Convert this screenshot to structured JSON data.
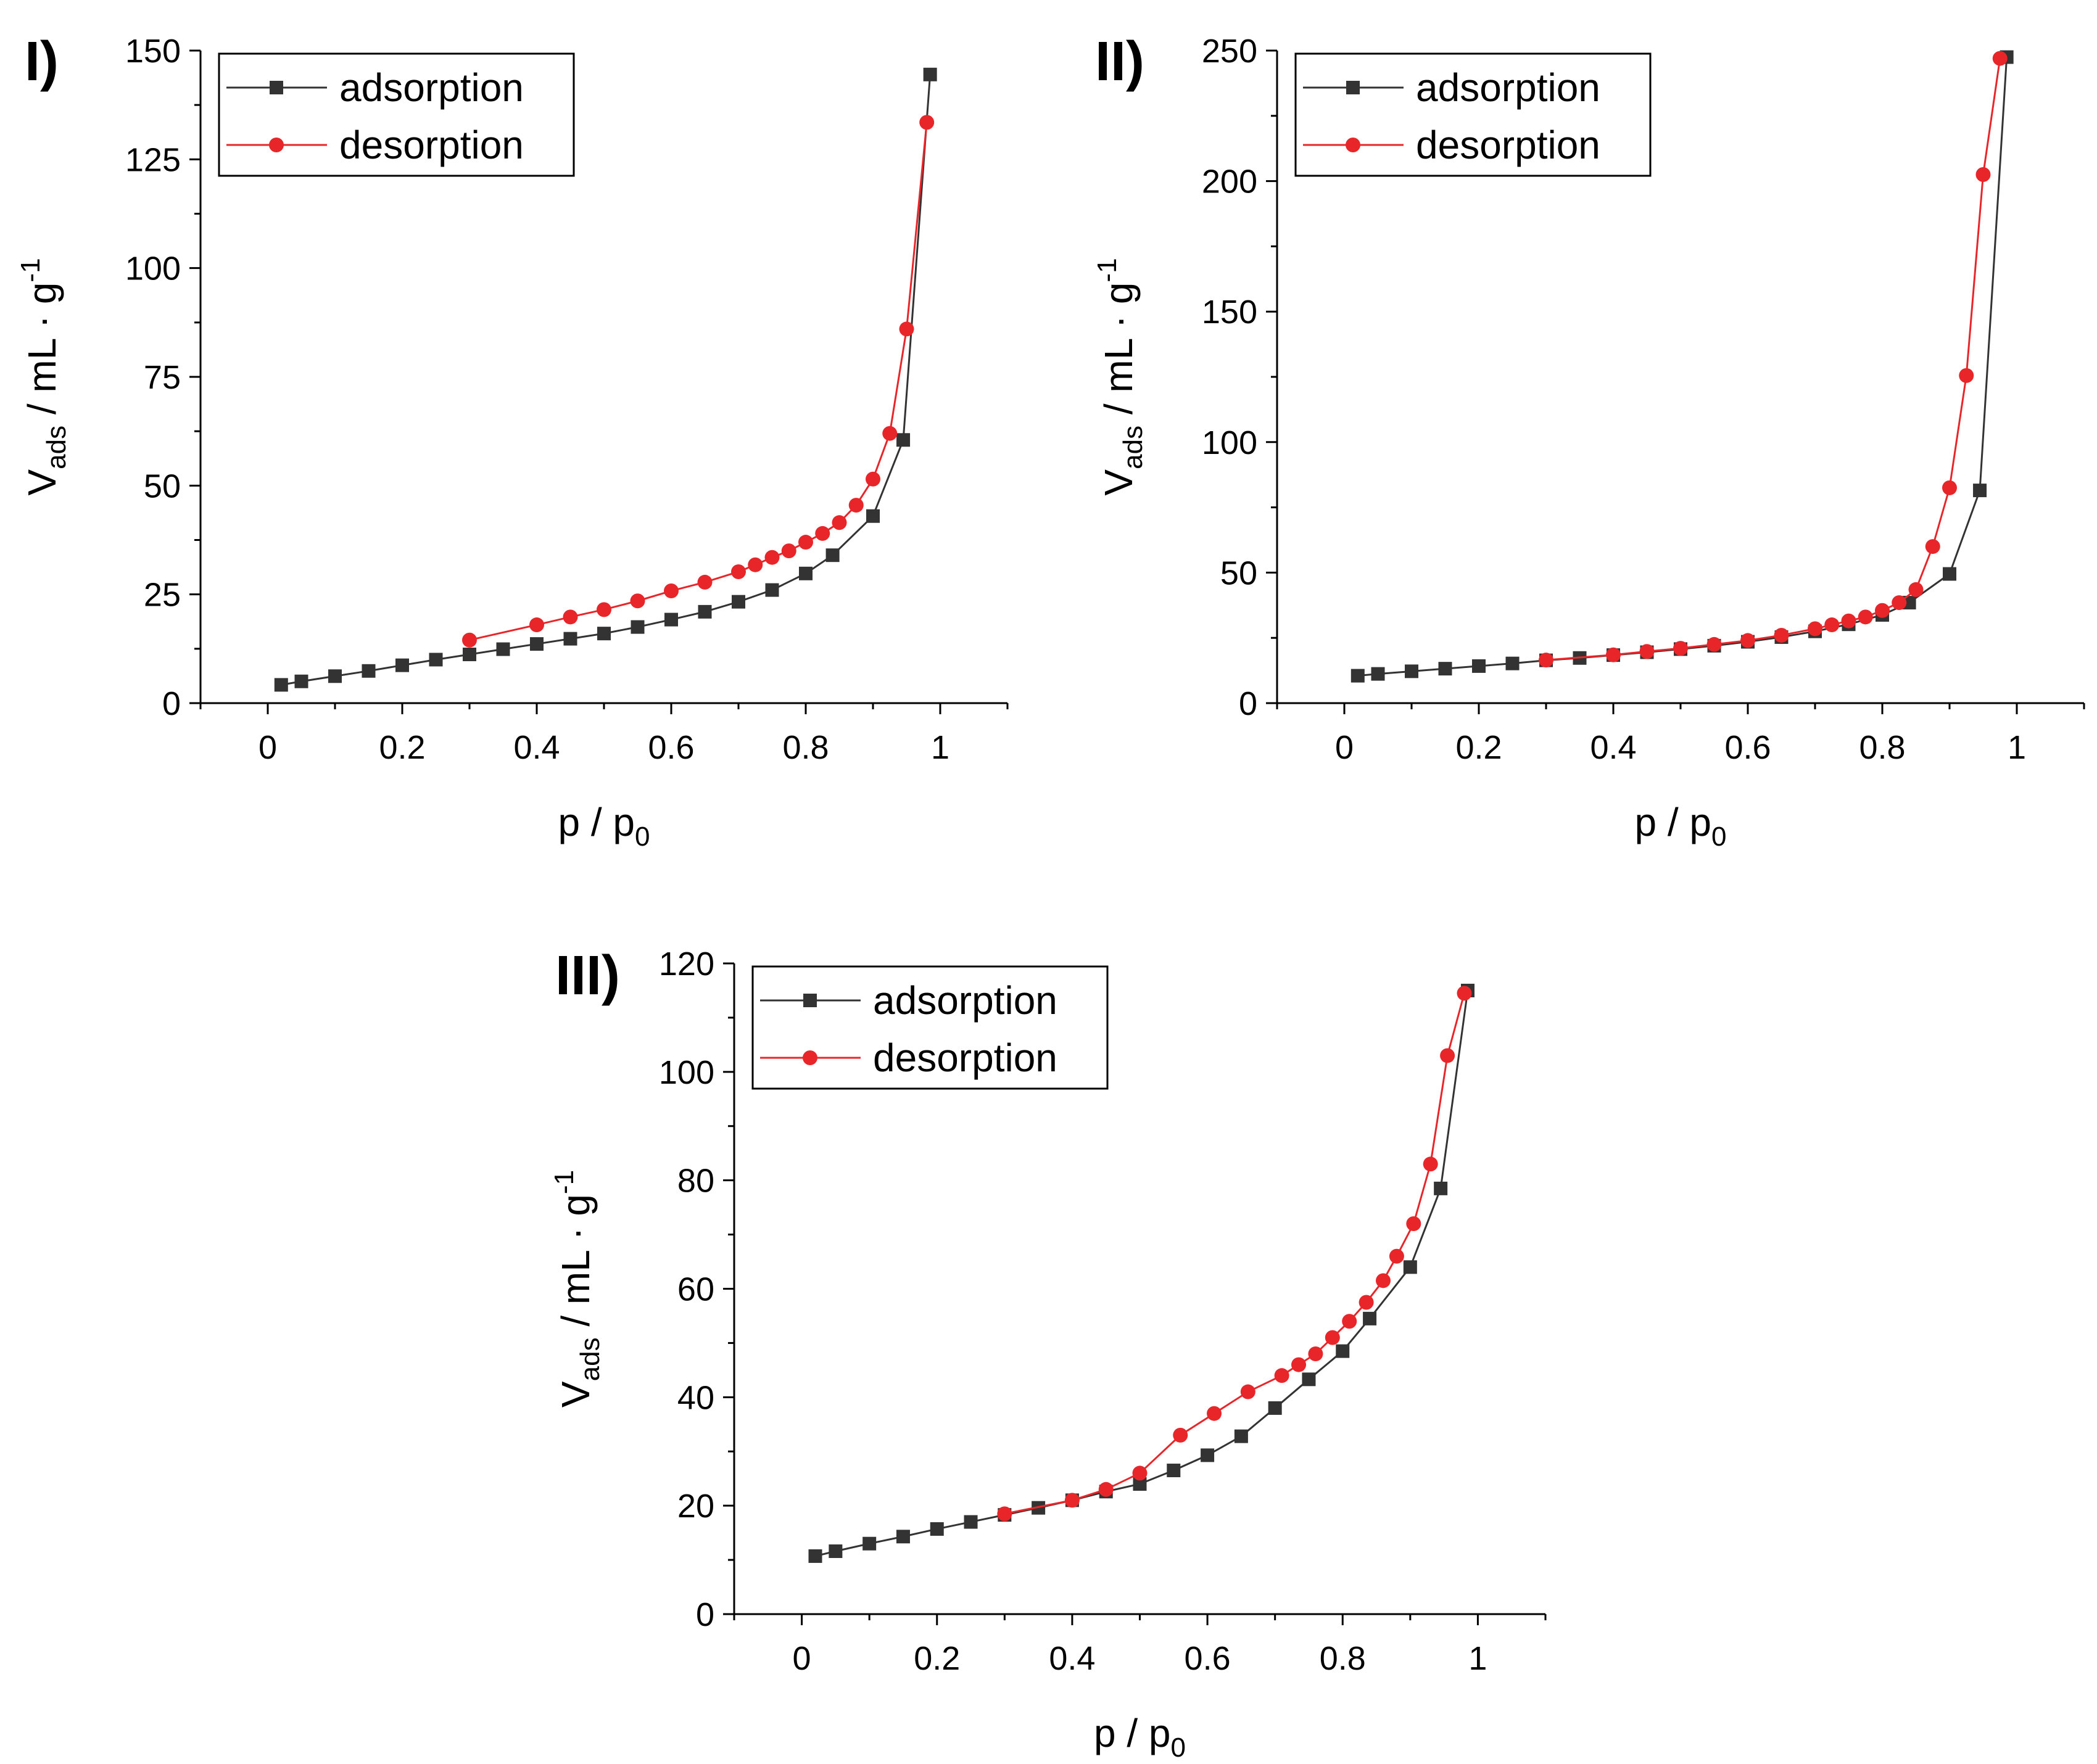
{
  "colors": {
    "adsorption": "#333333",
    "desorption": "#e8262a",
    "axis": "#000000",
    "background": "#ffffff"
  },
  "chart_data": [
    {
      "type": "line",
      "panel_label": "I)",
      "xlabel": "p / p",
      "xlabel_sub": "0",
      "ylabel": "V",
      "ylabel_sub": "ads",
      "ylabel_unit": " / mL · g",
      "ylabel_sup": "-1",
      "xlim": [
        -0.1,
        1.1
      ],
      "ylim": [
        0,
        150
      ],
      "xticks": [
        0,
        0.2,
        0.4,
        0.6,
        0.8,
        1
      ],
      "xtick_labels": [
        "0",
        "0.2",
        "0.4",
        "0.6",
        "0.8",
        "1"
      ],
      "yticks": [
        0,
        25,
        50,
        75,
        100,
        125,
        150
      ],
      "ytick_labels": [
        "0",
        "25",
        "50",
        "75",
        "100",
        "125",
        "150"
      ],
      "legend": [
        "adsorption",
        "desorption"
      ],
      "legend_position": "top-left",
      "series": [
        {
          "name": "adsorption",
          "marker": "square",
          "x": [
            0.02,
            0.05,
            0.1,
            0.15,
            0.2,
            0.25,
            0.3,
            0.35,
            0.4,
            0.45,
            0.5,
            0.55,
            0.6,
            0.65,
            0.7,
            0.75,
            0.8,
            0.84,
            0.9,
            0.945,
            0.985
          ],
          "y": [
            4.2,
            5.0,
            6.2,
            7.4,
            8.7,
            10.0,
            11.2,
            12.4,
            13.6,
            14.8,
            16.0,
            17.5,
            19.2,
            21.0,
            23.3,
            26.0,
            29.8,
            34.0,
            43.0,
            60.5,
            144.5
          ]
        },
        {
          "name": "desorption",
          "marker": "circle",
          "x": [
            0.98,
            0.95,
            0.925,
            0.9,
            0.875,
            0.85,
            0.825,
            0.8,
            0.775,
            0.75,
            0.725,
            0.7,
            0.65,
            0.6,
            0.55,
            0.5,
            0.45,
            0.4,
            0.3
          ],
          "y": [
            133.5,
            86.0,
            62.0,
            51.5,
            45.5,
            41.5,
            39.0,
            37.0,
            35.0,
            33.5,
            31.8,
            30.2,
            27.8,
            25.8,
            23.5,
            21.5,
            19.8,
            18.0,
            14.5
          ]
        }
      ]
    },
    {
      "type": "line",
      "panel_label": "II)",
      "xlabel": "p / p",
      "xlabel_sub": "0",
      "ylabel": "V",
      "ylabel_sub": "ads",
      "ylabel_unit": " / mL · g",
      "ylabel_sup": "-1",
      "xlim": [
        -0.1,
        1.1
      ],
      "ylim": [
        0,
        250
      ],
      "xticks": [
        0,
        0.2,
        0.4,
        0.6,
        0.8,
        1
      ],
      "xtick_labels": [
        "0",
        "0.2",
        "0.4",
        "0.6",
        "0.8",
        "1"
      ],
      "yticks": [
        0,
        50,
        100,
        150,
        200,
        250
      ],
      "ytick_labels": [
        "0",
        "50",
        "100",
        "150",
        "200",
        "250"
      ],
      "legend": [
        "adsorption",
        "desorption"
      ],
      "legend_position": "top-left",
      "series": [
        {
          "name": "adsorption",
          "marker": "square",
          "x": [
            0.02,
            0.05,
            0.1,
            0.15,
            0.2,
            0.25,
            0.3,
            0.35,
            0.4,
            0.45,
            0.5,
            0.55,
            0.6,
            0.65,
            0.7,
            0.75,
            0.8,
            0.84,
            0.9,
            0.945,
            0.985
          ],
          "y": [
            10.5,
            11.2,
            12.2,
            13.2,
            14.2,
            15.2,
            16.4,
            17.3,
            18.4,
            19.5,
            20.7,
            22.0,
            23.5,
            25.3,
            27.5,
            30.2,
            33.8,
            38.5,
            49.5,
            81.5,
            247.5
          ]
        },
        {
          "name": "desorption",
          "marker": "circle",
          "x": [
            0.975,
            0.95,
            0.925,
            0.9,
            0.875,
            0.85,
            0.825,
            0.8,
            0.775,
            0.75,
            0.725,
            0.7,
            0.65,
            0.6,
            0.55,
            0.5,
            0.45,
            0.4,
            0.3
          ],
          "y": [
            247.0,
            202.5,
            125.5,
            82.5,
            60.0,
            43.5,
            38.5,
            35.5,
            33.0,
            31.5,
            30.0,
            28.5,
            26.0,
            24.0,
            22.5,
            21.0,
            19.8,
            18.5,
            16.5
          ]
        }
      ]
    },
    {
      "type": "line",
      "panel_label": "III)",
      "xlabel": "p / p",
      "xlabel_sub": "0",
      "ylabel": "V",
      "ylabel_sub": "ads",
      "ylabel_unit": " / mL · g",
      "ylabel_sup": "-1",
      "xlim": [
        -0.1,
        1.1
      ],
      "ylim": [
        0,
        120
      ],
      "xticks": [
        0,
        0.2,
        0.4,
        0.6,
        0.8,
        1
      ],
      "xtick_labels": [
        "0",
        "0.2",
        "0.4",
        "0.6",
        "0.8",
        "1"
      ],
      "yticks": [
        0,
        20,
        40,
        60,
        80,
        100,
        120
      ],
      "ytick_labels": [
        "0",
        "20",
        "40",
        "60",
        "80",
        "100",
        "120"
      ],
      "legend": [
        "adsorption",
        "desorption"
      ],
      "legend_position": "top-left",
      "series": [
        {
          "name": "adsorption",
          "marker": "square",
          "x": [
            0.02,
            0.05,
            0.1,
            0.15,
            0.2,
            0.25,
            0.3,
            0.35,
            0.4,
            0.45,
            0.5,
            0.55,
            0.6,
            0.65,
            0.7,
            0.75,
            0.8,
            0.84,
            0.9,
            0.945,
            0.985
          ],
          "y": [
            10.7,
            11.6,
            13.0,
            14.3,
            15.7,
            17.0,
            18.3,
            19.6,
            21.0,
            22.6,
            24.0,
            26.5,
            29.3,
            32.8,
            38.0,
            43.3,
            48.5,
            54.5,
            64.0,
            78.5,
            115.0
          ]
        },
        {
          "name": "desorption",
          "marker": "circle",
          "x": [
            0.98,
            0.955,
            0.93,
            0.905,
            0.88,
            0.86,
            0.835,
            0.81,
            0.785,
            0.76,
            0.735,
            0.71,
            0.66,
            0.61,
            0.56,
            0.5,
            0.45,
            0.4,
            0.3
          ],
          "y": [
            114.5,
            103.0,
            83.0,
            72.0,
            66.0,
            61.5,
            57.5,
            54.0,
            51.0,
            48.0,
            46.0,
            44.0,
            41.0,
            37.0,
            33.0,
            26.0,
            23.0,
            21.0,
            18.5
          ]
        }
      ]
    }
  ]
}
